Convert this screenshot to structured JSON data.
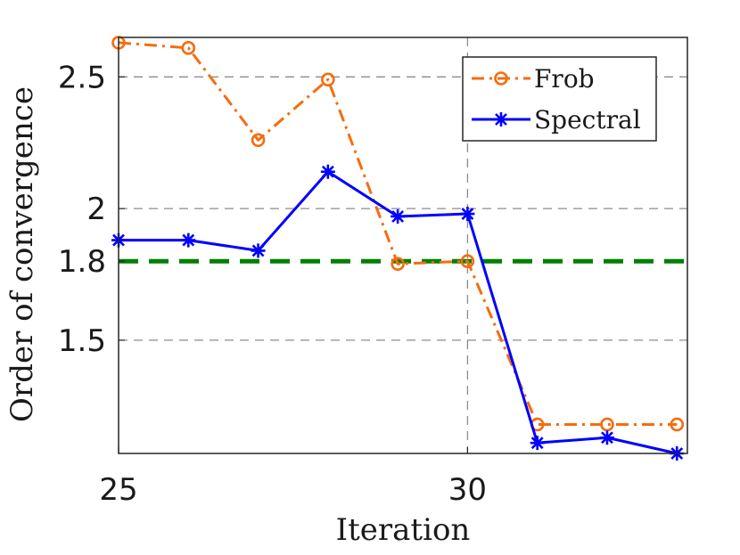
{
  "chart_data": {
    "type": "line",
    "xlabel": "Iteration",
    "ylabel": "Order of convergence",
    "xlim": [
      25,
      33.15
    ],
    "ylim": [
      1.07,
      2.65
    ],
    "x_ticks": [
      25,
      30
    ],
    "x_tick_labels": [
      "25",
      "30"
    ],
    "y_ticks": [
      1.5,
      1.8,
      2,
      2.5
    ],
    "y_tick_labels": [
      "1.5",
      "1.8",
      "2",
      "2.5"
    ],
    "y_gridlines": [
      1.5,
      2,
      2.5
    ],
    "x_gridlines": [
      30
    ],
    "reference_line": {
      "y": 1.8,
      "color": "#008000",
      "style": "dashed"
    },
    "legend_position": "top-right",
    "series": [
      {
        "name": "Frob",
        "color": "#F46D0E",
        "line_style": "dash-dot",
        "marker": "circle",
        "x": [
          25,
          26,
          27,
          28,
          29,
          30,
          31,
          32,
          33
        ],
        "values": [
          2.63,
          2.61,
          2.26,
          2.49,
          1.79,
          1.8,
          1.18,
          1.18,
          1.18
        ]
      },
      {
        "name": "Spectral",
        "color": "#0000FF",
        "line_style": "solid",
        "marker": "asterisk",
        "x": [
          25,
          26,
          27,
          28,
          29,
          30,
          31,
          32,
          33
        ],
        "values": [
          1.88,
          1.88,
          1.84,
          2.14,
          1.97,
          1.98,
          1.11,
          1.13,
          1.07
        ]
      }
    ]
  }
}
